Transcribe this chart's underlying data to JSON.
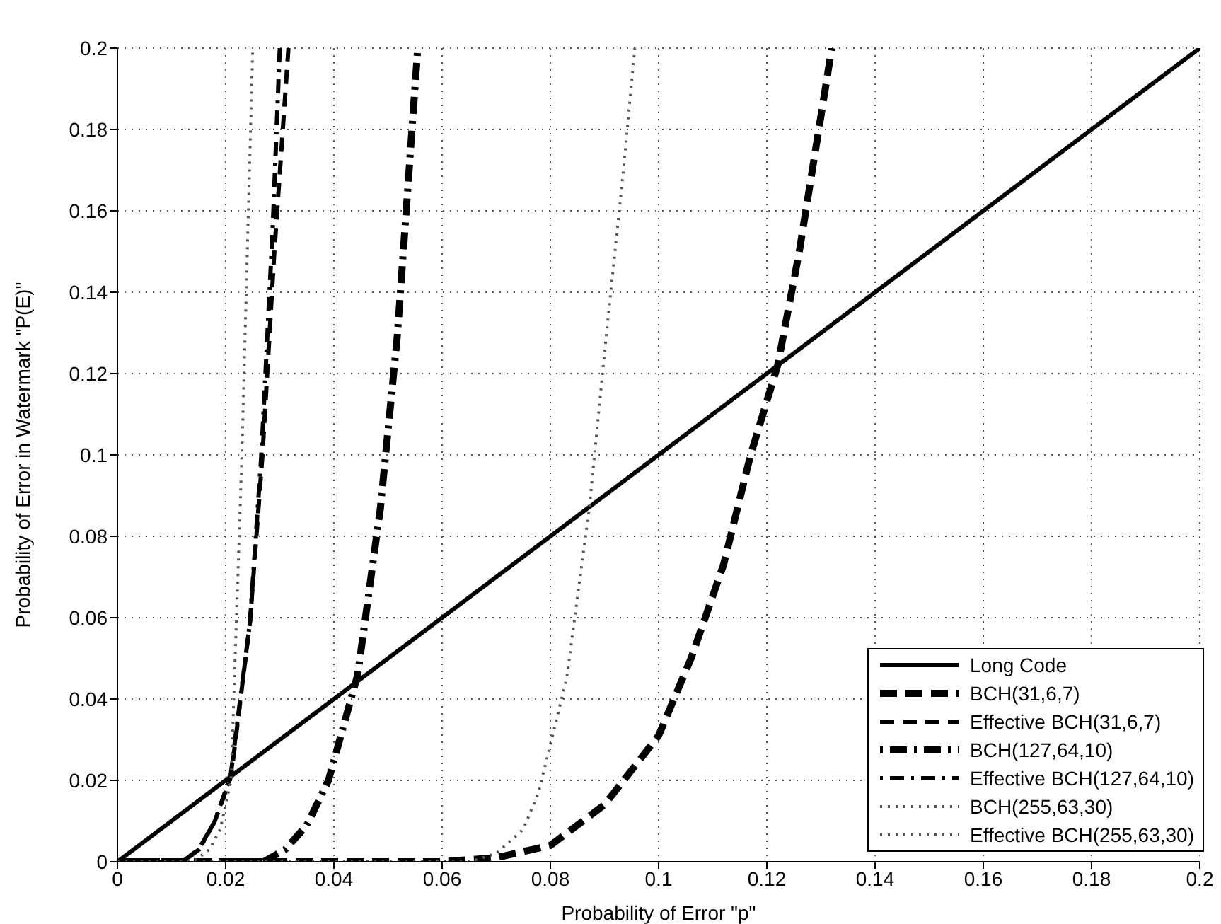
{
  "chart_data": {
    "type": "line",
    "xlabel": "Probability of Error \"p\"",
    "ylabel": "Probability of Error in Watermark \"P(E)\"",
    "xlim": [
      0,
      0.2
    ],
    "ylim": [
      0,
      0.2
    ],
    "xticks": [
      0,
      0.02,
      0.04,
      0.06,
      0.08,
      {
        "value": 0.1,
        "label": "0.1"
      },
      0.12,
      0.14,
      0.16,
      0.18,
      {
        "value": 0.2,
        "label": "0.2"
      }
    ],
    "yticks": [
      0,
      0.02,
      0.04,
      0.06,
      0.08,
      {
        "value": 0.1,
        "label": "0.1"
      },
      0.12,
      0.14,
      0.16,
      0.18,
      {
        "value": 0.2,
        "label": "0.2"
      }
    ],
    "grid": true,
    "legend": "bottom right",
    "marker": "none",
    "series": [
      {
        "name": "Long Code",
        "color": "#000000",
        "line_style": "solid",
        "x": [
          0,
          0.2
        ],
        "values": [
          0,
          0.2
        ]
      },
      {
        "name": "BCH(31,6,7)",
        "color": "#000000",
        "line_style": "dashed",
        "x": [
          0,
          0.06,
          0.07,
          0.08,
          0.09,
          0.1,
          0.106,
          0.112,
          0.117,
          0.122,
          0.126,
          0.132
        ],
        "values": [
          0,
          0,
          0.001,
          0.004,
          0.014,
          0.031,
          0.05,
          0.073,
          0.1,
          0.122,
          0.15,
          0.2
        ]
      },
      {
        "name": "Effective BCH(31,6,7)",
        "color": "#000000",
        "line_style": "dashed",
        "x": [
          0,
          0.012,
          0.015,
          0.018,
          0.021,
          0.0245,
          0.0268,
          0.029,
          0.0316
        ],
        "values": [
          0,
          0,
          0.003,
          0.01,
          0.021,
          0.059,
          0.1,
          0.15,
          0.2
        ]
      },
      {
        "name": "BCH(127,64,10)",
        "color": "#000000",
        "line_style": "dashdot",
        "x": [
          0,
          0.027,
          0.031,
          0.035,
          0.039,
          0.0444,
          0.0486,
          0.0517,
          0.0555
        ],
        "values": [
          0,
          0,
          0.003,
          0.009,
          0.02,
          0.046,
          0.087,
          0.129,
          0.2
        ]
      },
      {
        "name": "Effective BCH(127,64,10)",
        "color": "#000000",
        "line_style": "dashdot",
        "x": [
          0,
          0.012,
          0.0151,
          0.018,
          0.0209,
          0.0245,
          0.0266,
          0.0287,
          0.03
        ],
        "values": [
          0,
          0,
          0.003,
          0.01,
          0.021,
          0.059,
          0.1,
          0.156,
          0.2
        ]
      },
      {
        "name": "BCH(255,63,30)",
        "color": "#555555",
        "line_style": "dotted",
        "x": [
          0,
          0.065,
          0.07,
          0.075,
          0.0778,
          0.083,
          0.0872,
          0.0903,
          0.0935,
          0.0956
        ],
        "values": [
          0,
          0,
          0.002,
          0.008,
          0.017,
          0.045,
          0.087,
          0.129,
          0.17,
          0.2
        ]
      },
      {
        "name": "Effective BCH(255,63,30)",
        "color": "#555555",
        "line_style": "dotted",
        "x": [
          0,
          0.014,
          0.017,
          0.019,
          0.021,
          0.023,
          0.024,
          0.025
        ],
        "values": [
          0,
          0,
          0.003,
          0.008,
          0.02,
          0.1,
          0.15,
          0.2
        ]
      }
    ]
  }
}
